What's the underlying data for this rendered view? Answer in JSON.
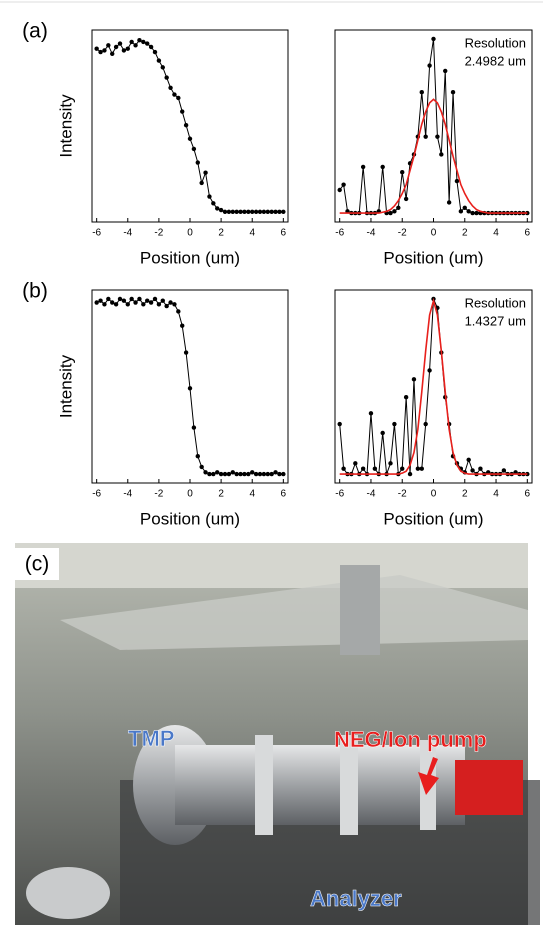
{
  "chart_data": [
    {
      "type": "line",
      "label": "(a)",
      "xlabel": "Position (um)",
      "ylabel": "Intensity",
      "x": [
        -6,
        -5.75,
        -5.5,
        -5.25,
        -5,
        -4.75,
        -4.5,
        -4.25,
        -4,
        -3.75,
        -3.5,
        -3.25,
        -3,
        -2.75,
        -2.5,
        -2.25,
        -2,
        -1.75,
        -1.5,
        -1.25,
        -1,
        -0.75,
        -0.5,
        -0.25,
        0,
        0.25,
        0.5,
        0.75,
        1,
        1.25,
        1.5,
        1.75,
        2,
        2.25,
        2.5,
        2.75,
        3,
        3.25,
        3.5,
        3.75,
        4,
        4.25,
        4.5,
        4.75,
        5,
        5.25,
        5.5,
        5.75,
        6
      ],
      "series": [
        {
          "color": "#000000",
          "markers": true,
          "values": [
            0.97,
            0.95,
            0.96,
            0.99,
            0.94,
            0.98,
            1.0,
            0.96,
            0.97,
            1.01,
            0.99,
            1.02,
            1.01,
            1.0,
            0.98,
            0.95,
            0.9,
            0.86,
            0.8,
            0.74,
            0.7,
            0.68,
            0.6,
            0.52,
            0.44,
            0.38,
            0.3,
            0.18,
            0.24,
            0.1,
            0.06,
            0.03,
            0.02,
            0.01,
            0.01,
            0.01,
            0.01,
            0.01,
            0.01,
            0.01,
            0.01,
            0.01,
            0.01,
            0.01,
            0.01,
            0.01,
            0.01,
            0.01,
            0.01
          ]
        }
      ],
      "xlim": [
        -6.3,
        6.3
      ],
      "xticks": [
        -6,
        -4,
        -2,
        0,
        2,
        4,
        6
      ],
      "ylim": [
        -0.05,
        1.08
      ]
    },
    {
      "type": "line",
      "annotation": [
        "Resolution",
        "2.4982 um"
      ],
      "xlabel": "Position (um)",
      "x": [
        -6,
        -5.75,
        -5.5,
        -5.25,
        -5,
        -4.75,
        -4.5,
        -4.25,
        -4,
        -3.75,
        -3.5,
        -3.25,
        -3,
        -2.75,
        -2.5,
        -2.25,
        -2,
        -1.75,
        -1.5,
        -1.25,
        -1,
        -0.75,
        -0.5,
        -0.25,
        0,
        0.25,
        0.5,
        0.75,
        1,
        1.25,
        1.5,
        1.75,
        2,
        2.25,
        2.5,
        2.75,
        3,
        3.25,
        3.5,
        3.75,
        4,
        4.25,
        4.5,
        4.75,
        5,
        5.25,
        5.5,
        5.75,
        6
      ],
      "series": [
        {
          "color": "#000000",
          "markers": true,
          "values": [
            0.15,
            0.18,
            0.03,
            0.02,
            0.02,
            0.02,
            0.28,
            0.02,
            0.02,
            0.02,
            0.03,
            0.28,
            0.02,
            0.02,
            0.03,
            0.05,
            0.25,
            0.1,
            0.3,
            0.35,
            0.45,
            0.7,
            0.45,
            0.85,
            1.0,
            0.45,
            0.35,
            0.82,
            0.08,
            0.7,
            0.2,
            0.03,
            0.05,
            0.03,
            0.02,
            0.02,
            0.02,
            0.02,
            0.02,
            0.02,
            0.02,
            0.02,
            0.02,
            0.02,
            0.02,
            0.02,
            0.02,
            0.02,
            0.02
          ]
        },
        {
          "color": "#e8201c",
          "markers": false,
          "values": [
            0.02,
            0.02,
            0.02,
            0.02,
            0.02,
            0.02,
            0.02,
            0.02,
            0.02,
            0.02,
            0.02,
            0.025,
            0.03,
            0.04,
            0.06,
            0.09,
            0.13,
            0.18,
            0.26,
            0.34,
            0.43,
            0.52,
            0.59,
            0.64,
            0.66,
            0.64,
            0.59,
            0.52,
            0.43,
            0.34,
            0.26,
            0.18,
            0.13,
            0.09,
            0.06,
            0.04,
            0.03,
            0.025,
            0.02,
            0.02,
            0.02,
            0.02,
            0.02,
            0.02,
            0.02,
            0.02,
            0.02,
            0.02,
            0.02
          ]
        }
      ],
      "xlim": [
        -6.3,
        6.3
      ],
      "xticks": [
        -6,
        -4,
        -2,
        0,
        2,
        4,
        6
      ],
      "ylim": [
        -0.03,
        1.05
      ]
    },
    {
      "type": "line",
      "label": "(b)",
      "xlabel": "Position (um)",
      "ylabel": "Intensity",
      "x": [
        -6,
        -5.75,
        -5.5,
        -5.25,
        -5,
        -4.75,
        -4.5,
        -4.25,
        -4,
        -3.75,
        -3.5,
        -3.25,
        -3,
        -2.75,
        -2.5,
        -2.25,
        -2,
        -1.75,
        -1.5,
        -1.25,
        -1,
        -0.75,
        -0.5,
        -0.25,
        0,
        0.25,
        0.5,
        0.75,
        1,
        1.25,
        1.5,
        1.75,
        2,
        2.25,
        2.5,
        2.75,
        3,
        3.25,
        3.5,
        3.75,
        4,
        4.25,
        4.5,
        4.75,
        5,
        5.25,
        5.5,
        5.75,
        6
      ],
      "series": [
        {
          "color": "#000000",
          "markers": true,
          "values": [
            0.98,
            0.99,
            0.97,
            1.0,
            0.98,
            0.97,
            1.0,
            0.99,
            0.97,
            1.0,
            0.98,
            1.0,
            0.97,
            0.99,
            0.98,
            1.0,
            0.97,
            0.99,
            0.96,
            0.98,
            0.97,
            0.93,
            0.85,
            0.7,
            0.5,
            0.28,
            0.12,
            0.06,
            0.03,
            0.02,
            0.02,
            0.03,
            0.02,
            0.02,
            0.02,
            0.03,
            0.02,
            0.02,
            0.02,
            0.02,
            0.03,
            0.02,
            0.02,
            0.02,
            0.02,
            0.02,
            0.03,
            0.02,
            0.02
          ]
        }
      ],
      "xlim": [
        -6.3,
        6.3
      ],
      "xticks": [
        -6,
        -4,
        -2,
        0,
        2,
        4,
        6
      ],
      "ylim": [
        -0.03,
        1.05
      ]
    },
    {
      "type": "line",
      "annotation": [
        "Resolution",
        "1.4327 um"
      ],
      "xlabel": "Position (um)",
      "x": [
        -6,
        -5.75,
        -5.5,
        -5.25,
        -5,
        -4.75,
        -4.5,
        -4.25,
        -4,
        -3.75,
        -3.5,
        -3.25,
        -3,
        -2.75,
        -2.5,
        -2.25,
        -2,
        -1.75,
        -1.5,
        -1.25,
        -1,
        -0.75,
        -0.5,
        -0.25,
        0,
        0.25,
        0.5,
        0.75,
        1,
        1.25,
        1.5,
        1.75,
        2,
        2.25,
        2.5,
        2.75,
        3,
        3.25,
        3.5,
        3.75,
        4,
        4.25,
        4.5,
        4.75,
        5,
        5.25,
        5.5,
        5.75,
        6
      ],
      "series": [
        {
          "color": "#000000",
          "markers": true,
          "values": [
            0.3,
            0.05,
            0.02,
            0.02,
            0.08,
            0.02,
            0.05,
            0.02,
            0.36,
            0.05,
            0.02,
            0.25,
            0.02,
            0.08,
            0.3,
            0.02,
            0.05,
            0.45,
            0.02,
            0.55,
            0.05,
            0.05,
            0.3,
            0.6,
            1.0,
            0.95,
            0.7,
            0.45,
            0.3,
            0.12,
            0.08,
            0.05,
            0.03,
            0.1,
            0.04,
            0.02,
            0.05,
            0.02,
            0.03,
            0.02,
            0.02,
            0.02,
            0.04,
            0.02,
            0.02,
            0.03,
            0.02,
            0.02,
            0.02
          ]
        },
        {
          "color": "#e8201c",
          "markers": false,
          "values": [
            0.02,
            0.02,
            0.02,
            0.02,
            0.02,
            0.02,
            0.02,
            0.02,
            0.02,
            0.02,
            0.02,
            0.02,
            0.02,
            0.02,
            0.02,
            0.02,
            0.025,
            0.036,
            0.07,
            0.14,
            0.27,
            0.48,
            0.71,
            0.91,
            0.99,
            0.91,
            0.71,
            0.48,
            0.27,
            0.14,
            0.07,
            0.036,
            0.025,
            0.02,
            0.02,
            0.02,
            0.02,
            0.02,
            0.02,
            0.02,
            0.02,
            0.02,
            0.02,
            0.02,
            0.02,
            0.02,
            0.02,
            0.02,
            0.02
          ]
        }
      ],
      "xlim": [
        -6.3,
        6.3
      ],
      "xticks": [
        -6,
        -4,
        -2,
        0,
        2,
        4,
        6
      ],
      "ylim": [
        -0.03,
        1.05
      ]
    }
  ],
  "photo": {
    "label": "(c)",
    "tmp": "TMP",
    "pump": "NEG/Ion pump",
    "analyzer": "Analyzer"
  }
}
